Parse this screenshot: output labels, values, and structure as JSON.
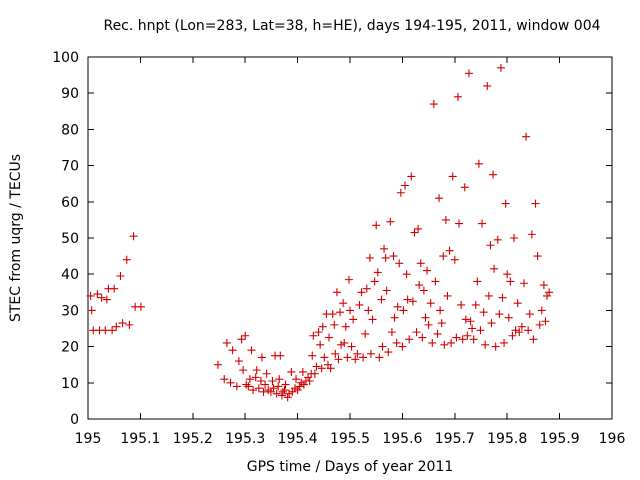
{
  "chart_data": {
    "type": "scatter",
    "title": "Rec. hnpt (Lon=283, Lat=38, h=HE), days 194-195, 2011, window 004",
    "xlabel": "GPS time / Days of year 2011",
    "ylabel": "STEC from uqrg / TECUs",
    "xlim": [
      195,
      196
    ],
    "ylim": [
      0,
      100
    ],
    "grid": false,
    "marker": "+",
    "color": "#d40000",
    "x_ticks": [
      "195",
      "195.1",
      "195.2",
      "195.3",
      "195.4",
      "195.5",
      "195.6",
      "195.7",
      "195.8",
      "195.9",
      "196"
    ],
    "y_ticks": [
      "0",
      "10",
      "20",
      "30",
      "40",
      "50",
      "60",
      "70",
      "80",
      "90",
      "100"
    ],
    "series": [
      {
        "name": "STEC",
        "points": [
          [
            195.005,
            34.0
          ],
          [
            195.007,
            30.0
          ],
          [
            195.01,
            24.5
          ],
          [
            195.018,
            34.5
          ],
          [
            195.022,
            24.5
          ],
          [
            195.026,
            33.5
          ],
          [
            195.033,
            24.5
          ],
          [
            195.036,
            33.0
          ],
          [
            195.039,
            36.0
          ],
          [
            195.046,
            24.5
          ],
          [
            195.05,
            36.0
          ],
          [
            195.054,
            25.5
          ],
          [
            195.062,
            39.5
          ],
          [
            195.066,
            26.5
          ],
          [
            195.074,
            44.0
          ],
          [
            195.079,
            26.0
          ],
          [
            195.087,
            50.5
          ],
          [
            195.09,
            31.0
          ],
          [
            195.101,
            31.0
          ],
          [
            195.248,
            15.0
          ],
          [
            195.26,
            11.0
          ],
          [
            195.265,
            21.0
          ],
          [
            195.272,
            10.0
          ],
          [
            195.276,
            19.0
          ],
          [
            195.284,
            9.0
          ],
          [
            195.288,
            16.0
          ],
          [
            195.293,
            22.0
          ],
          [
            195.296,
            13.5
          ],
          [
            195.3,
            23.0
          ],
          [
            195.302,
            9.5
          ],
          [
            195.306,
            9.0
          ],
          [
            195.309,
            11.0
          ],
          [
            195.312,
            19.0
          ],
          [
            195.315,
            8.0
          ],
          [
            195.32,
            11.5
          ],
          [
            195.322,
            13.5
          ],
          [
            195.326,
            8.5
          ],
          [
            195.33,
            10.5
          ],
          [
            195.332,
            17.0
          ],
          [
            195.335,
            7.5
          ],
          [
            195.338,
            9.5
          ],
          [
            195.341,
            12.5
          ],
          [
            195.344,
            8.0
          ],
          [
            195.349,
            7.5
          ],
          [
            195.352,
            10.5
          ],
          [
            195.354,
            8.5
          ],
          [
            195.357,
            17.5
          ],
          [
            195.36,
            7.0
          ],
          [
            195.363,
            9.0
          ],
          [
            195.365,
            11.0
          ],
          [
            195.367,
            17.5
          ],
          [
            195.37,
            6.5
          ],
          [
            195.372,
            7.5
          ],
          [
            195.375,
            8.0
          ],
          [
            195.377,
            9.5
          ],
          [
            195.381,
            6.0
          ],
          [
            195.384,
            7.0
          ],
          [
            195.388,
            13.0
          ],
          [
            195.39,
            7.5
          ],
          [
            195.395,
            8.5
          ],
          [
            195.397,
            11.0
          ],
          [
            195.4,
            8.0
          ],
          [
            195.404,
            9.0
          ],
          [
            195.407,
            10.0
          ],
          [
            195.41,
            13.0
          ],
          [
            195.412,
            9.5
          ],
          [
            195.416,
            10.5
          ],
          [
            195.42,
            11.5
          ],
          [
            195.423,
            10.5
          ],
          [
            195.426,
            12.5
          ],
          [
            195.428,
            17.5
          ],
          [
            195.43,
            23.0
          ],
          [
            195.433,
            12.5
          ],
          [
            195.436,
            14.5
          ],
          [
            195.44,
            24.0
          ],
          [
            195.443,
            20.5
          ],
          [
            195.446,
            14.0
          ],
          [
            195.448,
            25.5
          ],
          [
            195.451,
            17.0
          ],
          [
            195.455,
            29.0
          ],
          [
            195.458,
            15.0
          ],
          [
            195.46,
            22.5
          ],
          [
            195.463,
            14.0
          ],
          [
            195.467,
            29.0
          ],
          [
            195.47,
            26.0
          ],
          [
            195.472,
            18.0
          ],
          [
            195.475,
            35.0
          ],
          [
            195.478,
            16.5
          ],
          [
            195.481,
            29.5
          ],
          [
            195.483,
            20.5
          ],
          [
            195.487,
            32.0
          ],
          [
            195.489,
            21.0
          ],
          [
            195.492,
            25.5
          ],
          [
            195.495,
            17.0
          ],
          [
            195.498,
            38.5
          ],
          [
            195.5,
            30.0
          ],
          [
            195.503,
            20.0
          ],
          [
            195.506,
            27.5
          ],
          [
            195.51,
            16.5
          ],
          [
            195.514,
            18.0
          ],
          [
            195.518,
            31.5
          ],
          [
            195.522,
            35.0
          ],
          [
            195.525,
            17.0
          ],
          [
            195.529,
            23.5
          ],
          [
            195.532,
            36.0
          ],
          [
            195.535,
            30.0
          ],
          [
            195.538,
            44.5
          ],
          [
            195.54,
            18.0
          ],
          [
            195.543,
            27.5
          ],
          [
            195.547,
            38.0
          ],
          [
            195.55,
            53.5
          ],
          [
            195.553,
            40.5
          ],
          [
            195.556,
            17.0
          ],
          [
            195.56,
            33.0
          ],
          [
            195.562,
            20.0
          ],
          [
            195.565,
            47.0
          ],
          [
            195.568,
            44.5
          ],
          [
            195.57,
            35.5
          ],
          [
            195.573,
            18.5
          ],
          [
            195.577,
            54.5
          ],
          [
            195.58,
            24.0
          ],
          [
            195.583,
            45.0
          ],
          [
            195.585,
            28.0
          ],
          [
            195.589,
            21.0
          ],
          [
            195.591,
            31.0
          ],
          [
            195.594,
            43.0
          ],
          [
            195.597,
            62.5
          ],
          [
            195.6,
            20.0
          ],
          [
            195.602,
            30.0
          ],
          [
            195.605,
            64.5
          ],
          [
            195.608,
            40.0
          ],
          [
            195.61,
            33.0
          ],
          [
            195.613,
            22.0
          ],
          [
            195.617,
            67.0
          ],
          [
            195.62,
            32.5
          ],
          [
            195.623,
            51.5
          ],
          [
            195.627,
            24.0
          ],
          [
            195.63,
            52.5
          ],
          [
            195.632,
            37.0
          ],
          [
            195.635,
            43.0
          ],
          [
            195.638,
            22.5
          ],
          [
            195.641,
            35.5
          ],
          [
            195.644,
            28.0
          ],
          [
            195.647,
            41.0
          ],
          [
            195.65,
            26.0
          ],
          [
            195.654,
            32.0
          ],
          [
            195.657,
            21.0
          ],
          [
            195.66,
            87.0
          ],
          [
            195.663,
            38.0
          ],
          [
            195.667,
            23.5
          ],
          [
            195.67,
            61.0
          ],
          [
            195.672,
            30.0
          ],
          [
            195.675,
            26.5
          ],
          [
            195.678,
            45.0
          ],
          [
            195.68,
            20.5
          ],
          [
            195.683,
            55.0
          ],
          [
            195.686,
            34.0
          ],
          [
            195.69,
            46.5
          ],
          [
            195.693,
            21.0
          ],
          [
            195.696,
            67.0
          ],
          [
            195.7,
            44.0
          ],
          [
            195.703,
            22.5
          ],
          [
            195.706,
            89.0
          ],
          [
            195.708,
            54.0
          ],
          [
            195.712,
            31.5
          ],
          [
            195.715,
            22.0
          ],
          [
            195.719,
            64.0
          ],
          [
            195.721,
            27.5
          ],
          [
            195.724,
            23.0
          ],
          [
            195.727,
            95.5
          ],
          [
            195.73,
            27.0
          ],
          [
            195.733,
            25.0
          ],
          [
            195.736,
            22.0
          ],
          [
            195.74,
            31.5
          ],
          [
            195.743,
            38.0
          ],
          [
            195.746,
            70.5
          ],
          [
            195.749,
            24.5
          ],
          [
            195.752,
            54.0
          ],
          [
            195.755,
            29.5
          ],
          [
            195.758,
            20.5
          ],
          [
            195.762,
            92.0
          ],
          [
            195.765,
            34.0
          ],
          [
            195.768,
            48.0
          ],
          [
            195.77,
            26.5
          ],
          [
            195.773,
            67.5
          ],
          [
            195.775,
            41.5
          ],
          [
            195.778,
            20.0
          ],
          [
            195.782,
            49.5
          ],
          [
            195.785,
            29.0
          ],
          [
            195.788,
            97.0
          ],
          [
            195.791,
            33.5
          ],
          [
            195.794,
            21.0
          ],
          [
            195.797,
            59.5
          ],
          [
            195.8,
            40.0
          ],
          [
            195.803,
            28.0
          ],
          [
            195.806,
            38.0
          ],
          [
            195.81,
            23.0
          ],
          [
            195.813,
            50.0
          ],
          [
            195.816,
            24.5
          ],
          [
            195.82,
            32.0
          ],
          [
            195.823,
            24.0
          ],
          [
            195.828,
            25.5
          ],
          [
            195.832,
            37.5
          ],
          [
            195.836,
            78.0
          ],
          [
            195.84,
            24.5
          ],
          [
            195.843,
            29.0
          ],
          [
            195.847,
            51.0
          ],
          [
            195.85,
            22.0
          ],
          [
            195.854,
            59.5
          ],
          [
            195.858,
            45.0
          ],
          [
            195.862,
            26.0
          ],
          [
            195.866,
            30.0
          ],
          [
            195.87,
            37.0
          ],
          [
            195.873,
            27.0
          ],
          [
            195.876,
            34.0
          ],
          [
            195.88,
            35.0
          ]
        ]
      }
    ]
  }
}
